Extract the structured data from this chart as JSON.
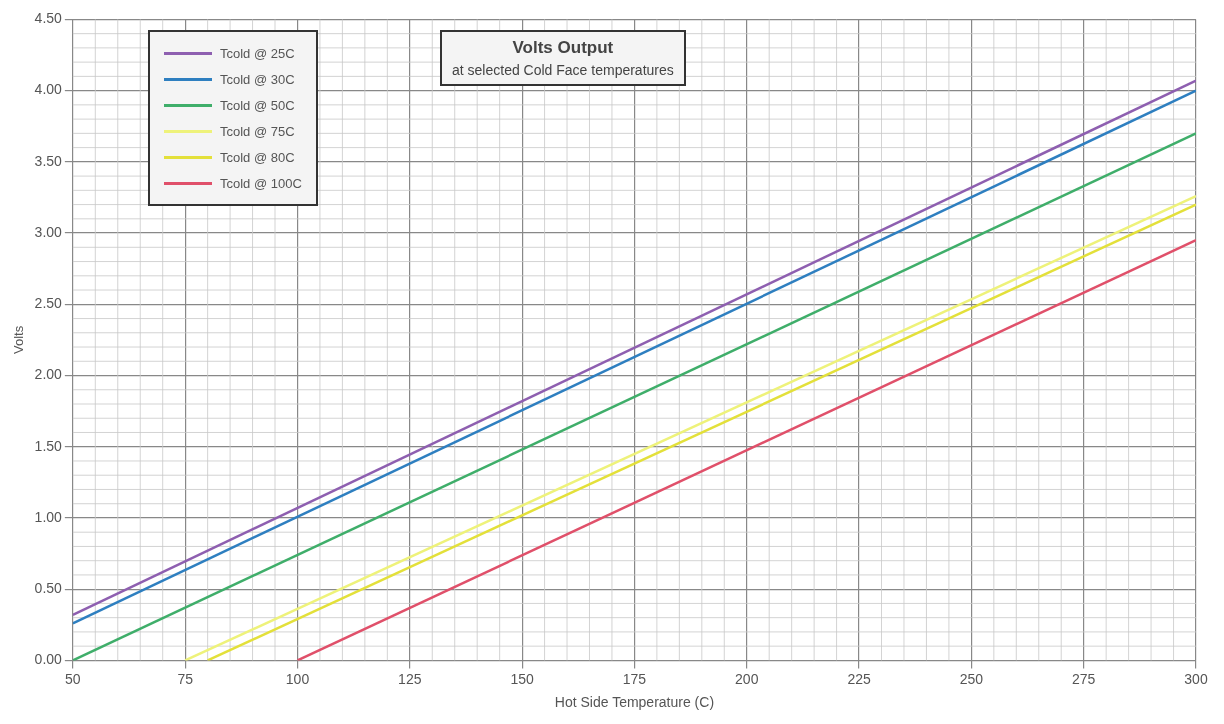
{
  "chart_data": {
    "type": "line",
    "title": "Volts Output",
    "subtitle": "at selected Cold Face temperatures",
    "xlabel": "Hot Side Temperature (C)",
    "ylabel": "Volts",
    "xlim": [
      50,
      300
    ],
    "xticks": [
      50,
      75,
      100,
      125,
      150,
      175,
      200,
      225,
      250,
      275,
      300
    ],
    "ylim": [
      0,
      4.5
    ],
    "yticks": [
      {
        "value": 0,
        "label": "0.00"
      },
      {
        "value": 0.5,
        "label": "0.50"
      },
      {
        "value": 1,
        "label": "1.00"
      },
      {
        "value": 1.5,
        "label": "1.50"
      },
      {
        "value": 2,
        "label": "2.00"
      },
      {
        "value": 2.5,
        "label": "2.50"
      },
      {
        "value": 3,
        "label": "3.00"
      },
      {
        "value": 3.5,
        "label": "3.50"
      },
      {
        "value": 4,
        "label": "4.00"
      },
      {
        "value": 4.5,
        "label": "4.50"
      }
    ],
    "grid": true,
    "legend": "top left",
    "marker": "none",
    "line_style": "solid",
    "series": [
      {
        "name": "Tcold @ 25C",
        "color": "#8e5fb0",
        "x": [
          50,
          300
        ],
        "values": [
          0.32,
          4.07
        ]
      },
      {
        "name": "Tcold @ 30C",
        "color": "#2e7fc0",
        "x": [
          50,
          300
        ],
        "values": [
          0.26,
          4.0
        ]
      },
      {
        "name": "Tcold @ 50C",
        "color": "#3fae6a",
        "x": [
          50,
          300
        ],
        "values": [
          0,
          3.7
        ]
      },
      {
        "name": "Tcold @ 75C",
        "color": "#eef27a",
        "x": [
          75,
          300
        ],
        "values": [
          0,
          3.26
        ]
      },
      {
        "name": "Tcold @ 80C",
        "color": "#e3e03a",
        "x": [
          80,
          300
        ],
        "values": [
          0,
          3.2
        ]
      },
      {
        "name": "Tcold @ 100C",
        "color": "#e0506a",
        "x": [
          100,
          300
        ],
        "values": [
          0,
          2.95
        ]
      }
    ]
  }
}
